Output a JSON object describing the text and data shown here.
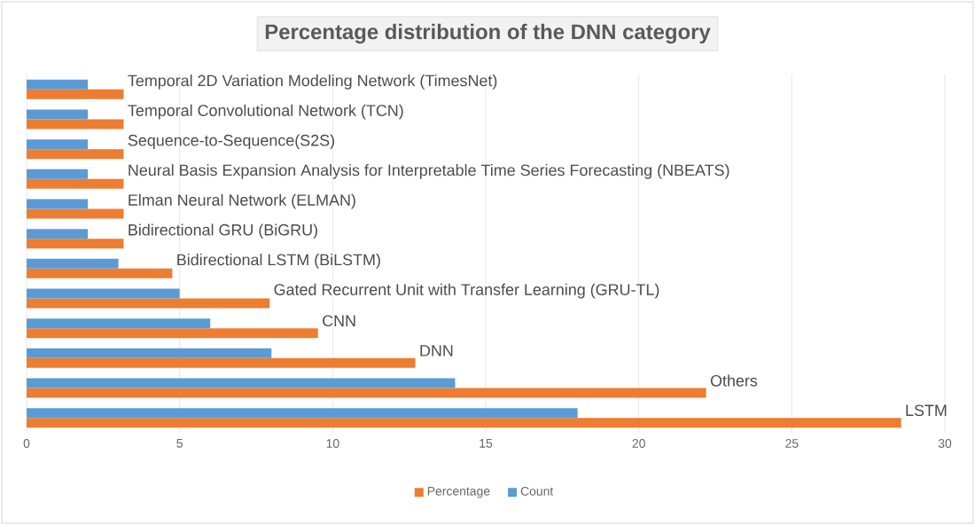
{
  "chart_data": {
    "type": "bar",
    "orientation": "horizontal",
    "title": "Percentage distribution of the DNN category",
    "categories": [
      "Temporal 2D Variation Modeling Network (TimesNet)",
      "Temporal Convolutional Network (TCN)",
      "Sequence-to-Sequence(S2S)",
      "Neural Basis Expansion Analysis for Interpretable Time Series Forecasting (NBEATS)",
      "Elman Neural Network (ELMAN)",
      "Bidirectional GRU (BiGRU)",
      "Bidirectional LSTM (BiLSTM)",
      "Gated Recurrent Unit with Transfer Learning (GRU-TL)",
      "CNN",
      "DNN",
      "Others",
      "LSTM"
    ],
    "series": [
      {
        "name": "Percentage",
        "color": "#ed7d31",
        "values": [
          3.17,
          3.17,
          3.17,
          3.17,
          3.17,
          3.17,
          4.76,
          7.94,
          9.52,
          12.7,
          22.2,
          28.57
        ]
      },
      {
        "name": "Count",
        "color": "#5b9bd5",
        "values": [
          2,
          2,
          2,
          2,
          2,
          2,
          3,
          5,
          6,
          8,
          14,
          18
        ]
      }
    ],
    "xlim": [
      0,
      30
    ],
    "xticks": [
      0,
      5,
      10,
      15,
      20,
      25,
      30
    ],
    "grid": "x",
    "legend": "bottom"
  }
}
